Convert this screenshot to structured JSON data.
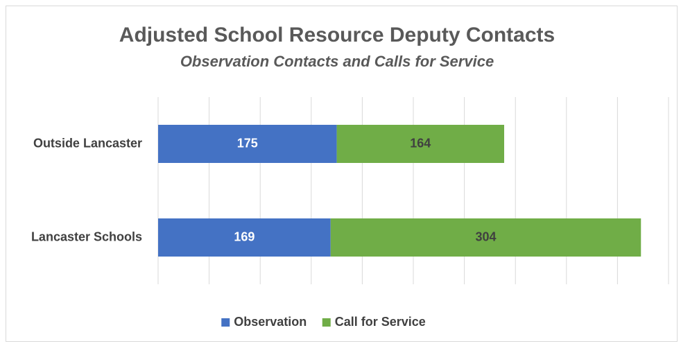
{
  "chart_data": {
    "type": "stacked_barh",
    "title": "Adjusted School Resource Deputy Contacts",
    "subtitle": "Observation Contacts and Calls for Service",
    "categories": [
      "Outside Lancaster",
      "Lancaster Schools"
    ],
    "series": [
      {
        "name": "Observation",
        "color": "#4472c4",
        "label_color": "#ffffff",
        "values": [
          175,
          169
        ]
      },
      {
        "name": "Call for Service",
        "color": "#70ad47",
        "label_color": "#404040",
        "values": [
          164,
          304
        ]
      }
    ],
    "xlim": [
      0,
      500
    ],
    "xticks": [
      0,
      50,
      100,
      150,
      200,
      250,
      300,
      350,
      400,
      450,
      500
    ],
    "grid": true,
    "legend": "bottom"
  }
}
